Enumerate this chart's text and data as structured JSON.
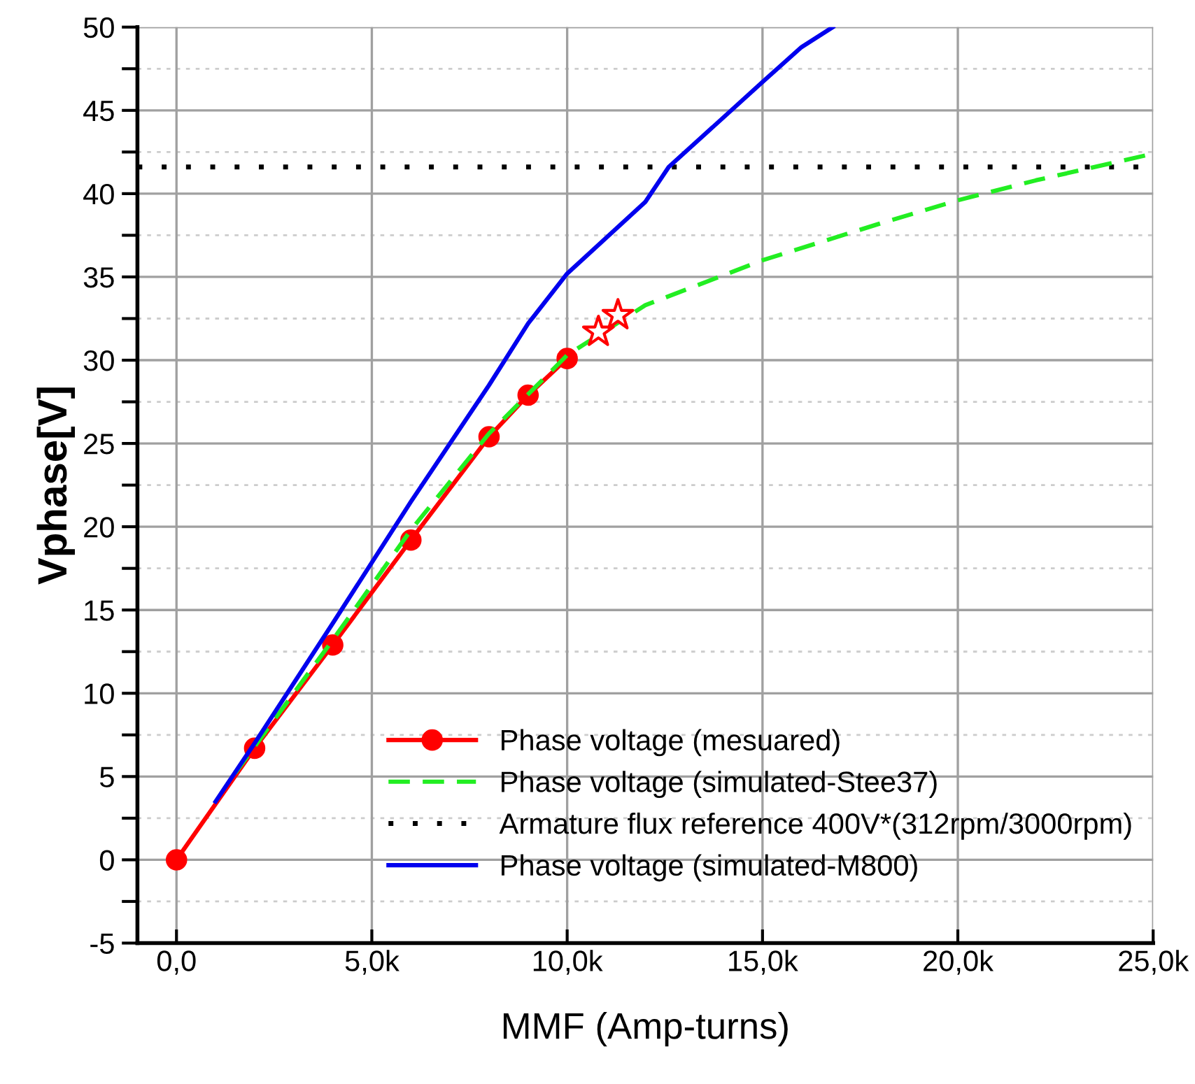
{
  "chart_data": {
    "type": "line",
    "xlabel": "MMF (Amp-turns)",
    "ylabel": "Vphase[V]",
    "xlim": [
      -1000,
      25000
    ],
    "xticks": [
      {
        "value": 0,
        "label": "0,0"
      },
      {
        "value": 5000,
        "label": "5,0k"
      },
      {
        "value": 10000,
        "label": "10,0k"
      },
      {
        "value": 15000,
        "label": "15,0k"
      },
      {
        "value": 20000,
        "label": "20,0k"
      },
      {
        "value": 25000,
        "label": "25,0k"
      }
    ],
    "ylim": [
      -5,
      50
    ],
    "yticks": [
      -5,
      {
        "value": -2.5,
        "label": null
      },
      0,
      {
        "value": 2.5,
        "label": null
      },
      5,
      {
        "value": 7.5,
        "label": null
      },
      10,
      {
        "value": 12.5,
        "label": null
      },
      15,
      {
        "value": 17.5,
        "label": null
      },
      20,
      {
        "value": 22.5,
        "label": null
      },
      25,
      {
        "value": 27.5,
        "label": null
      },
      30,
      {
        "value": 32.5,
        "label": null
      },
      35,
      {
        "value": 37.5,
        "label": null
      },
      40,
      {
        "value": 42.5,
        "label": null
      },
      45,
      {
        "value": 47.5,
        "label": null
      },
      50
    ],
    "grid": true,
    "legend": "bottom right",
    "series": [
      {
        "name": "Phase voltage (mesuared)",
        "color": "#ff0000",
        "marker": "circle",
        "line_style": "solid",
        "x": [
          0,
          2000,
          4000,
          6000,
          8000,
          9000,
          10000
        ],
        "values": [
          0,
          6.7,
          12.9,
          19.2,
          25.4,
          27.9,
          30.1
        ]
      },
      {
        "type": "scatter",
        "color": "#ff0000",
        "marker": "star",
        "x": [
          10800,
          11300
        ],
        "values": [
          31.7,
          32.7
        ]
      },
      {
        "name": "Phase voltage (simulated-Stee37)",
        "color": "#22ee22",
        "marker": "none",
        "line_style": "dashed",
        "x": [
          1500,
          4000,
          6000,
          8000,
          10000,
          12000,
          15000,
          18000,
          20000,
          22000,
          25000
        ],
        "values": [
          5.2,
          13.2,
          19.8,
          25.6,
          30.3,
          33.3,
          36.0,
          38.2,
          39.6,
          40.8,
          42.4
        ]
      },
      {
        "name": "Phase voltage (simulated-M800)",
        "color": "#0000ee",
        "marker": "none",
        "line_style": "solid",
        "x": [
          1000,
          2000,
          4000,
          6000,
          8000,
          9000,
          10000,
          12000,
          12600,
          15000,
          16000,
          16800
        ],
        "values": [
          3.5,
          7.0,
          14.2,
          21.5,
          28.5,
          32.2,
          35.2,
          39.5,
          41.6,
          46.7,
          48.8,
          50
        ]
      }
    ],
    "ref_lines": [
      {
        "axis": "y",
        "value": 41.6,
        "label": "Armature flux reference 400V*(312rpm/3000rpm)",
        "color": "#000000",
        "line_style": "dotted"
      }
    ]
  }
}
